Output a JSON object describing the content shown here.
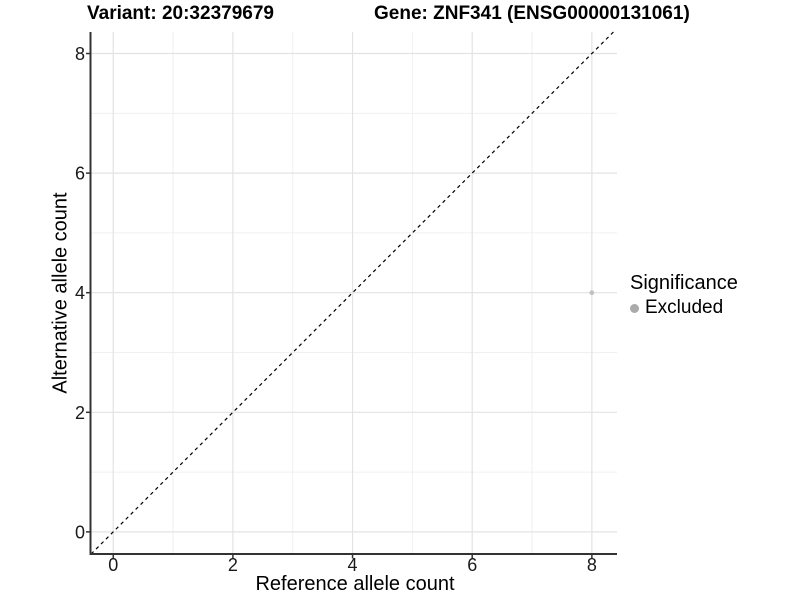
{
  "titles": {
    "variant": "Variant: 20:32379679",
    "gene": "Gene: ZNF341 (ENSG00000131061)"
  },
  "legend": {
    "title": "Significance",
    "items": [
      {
        "label": "Excluded",
        "color": "#ababab"
      }
    ]
  },
  "chart_data": {
    "type": "scatter",
    "title": "Variant: 20:32379679 — Gene: ZNF341 (ENSG00000131061)",
    "xlabel": "Reference allele count",
    "ylabel": "Alternative allele count",
    "xlim": [
      -0.38,
      8.42
    ],
    "ylim": [
      -0.37,
      8.36
    ],
    "x_ticks": [
      0,
      2,
      4,
      6,
      8
    ],
    "y_ticks": [
      0,
      2,
      4,
      6,
      8
    ],
    "x_minor_ticks": [
      1,
      3,
      5,
      7
    ],
    "y_minor_ticks": [
      1,
      3,
      5,
      7
    ],
    "grid": true,
    "legend_position": "right",
    "series": [
      {
        "name": "Excluded",
        "color": "#c2c2c2",
        "points": [
          {
            "x": 8,
            "y": 4
          }
        ]
      }
    ],
    "reference_line": {
      "type": "identity",
      "slope": 1,
      "intercept": 0,
      "style": "dashed",
      "color": "#000000"
    }
  },
  "colors": {
    "background": "#ffffff",
    "grid_major": "#e3e3e3",
    "grid_minor": "#f0f0f0",
    "axis_line": "#333333",
    "tick_mark": "#333333",
    "tick_label": "#1a1a1a",
    "point": "#c2c2c2",
    "legend_key": "#ababab"
  }
}
